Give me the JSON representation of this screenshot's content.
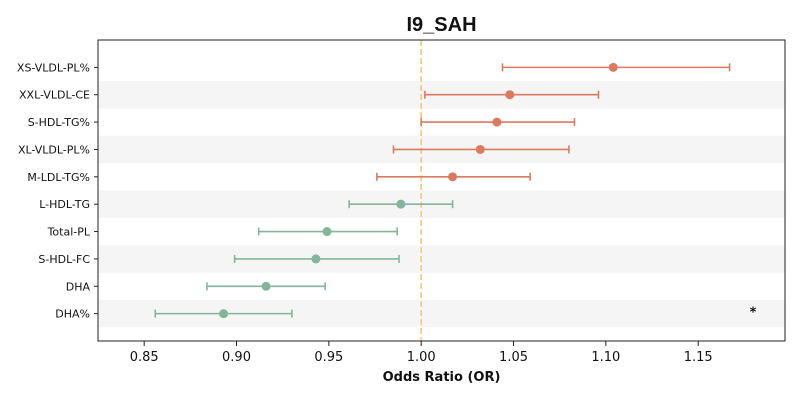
{
  "chart_data": {
    "type": "forest",
    "title": "I9_SAH",
    "xlabel": "Odds Ratio (OR)",
    "xlim": [
      0.825,
      1.197
    ],
    "xticks": [
      0.85,
      0.9,
      0.95,
      1.0,
      1.05,
      1.1,
      1.15
    ],
    "xtick_labels": [
      "0.85",
      "0.90",
      "0.95",
      "1.00",
      "1.05",
      "1.10",
      "1.15"
    ],
    "reference_line": 1.0,
    "reference_color": "#f5c87a",
    "colors": {
      "above_one": "#dc7a5f",
      "below_one": "#84b59a",
      "band": "#f5f5f5"
    },
    "rows": [
      {
        "label": "XS-VLDL-PL%",
        "or": 1.104,
        "lo": 1.044,
        "hi": 1.167,
        "marker": ""
      },
      {
        "label": "XXL-VLDL-CE",
        "or": 1.048,
        "lo": 1.002,
        "hi": 1.096,
        "marker": ""
      },
      {
        "label": "S-HDL-TG%",
        "or": 1.041,
        "lo": 1.0,
        "hi": 1.083,
        "marker": ""
      },
      {
        "label": "XL-VLDL-PL%",
        "or": 1.032,
        "lo": 0.985,
        "hi": 1.08,
        "marker": ""
      },
      {
        "label": "M-LDL-TG%",
        "or": 1.017,
        "lo": 0.976,
        "hi": 1.059,
        "marker": ""
      },
      {
        "label": "L-HDL-TG",
        "or": 0.989,
        "lo": 0.961,
        "hi": 1.017,
        "marker": ""
      },
      {
        "label": "Total-PL",
        "or": 0.949,
        "lo": 0.912,
        "hi": 0.987,
        "marker": ""
      },
      {
        "label": "S-HDL-FC",
        "or": 0.943,
        "lo": 0.899,
        "hi": 0.988,
        "marker": ""
      },
      {
        "label": "DHA",
        "or": 0.916,
        "lo": 0.884,
        "hi": 0.948,
        "marker": ""
      },
      {
        "label": "DHA%",
        "or": 0.893,
        "lo": 0.856,
        "hi": 0.93,
        "marker": "*"
      }
    ]
  }
}
